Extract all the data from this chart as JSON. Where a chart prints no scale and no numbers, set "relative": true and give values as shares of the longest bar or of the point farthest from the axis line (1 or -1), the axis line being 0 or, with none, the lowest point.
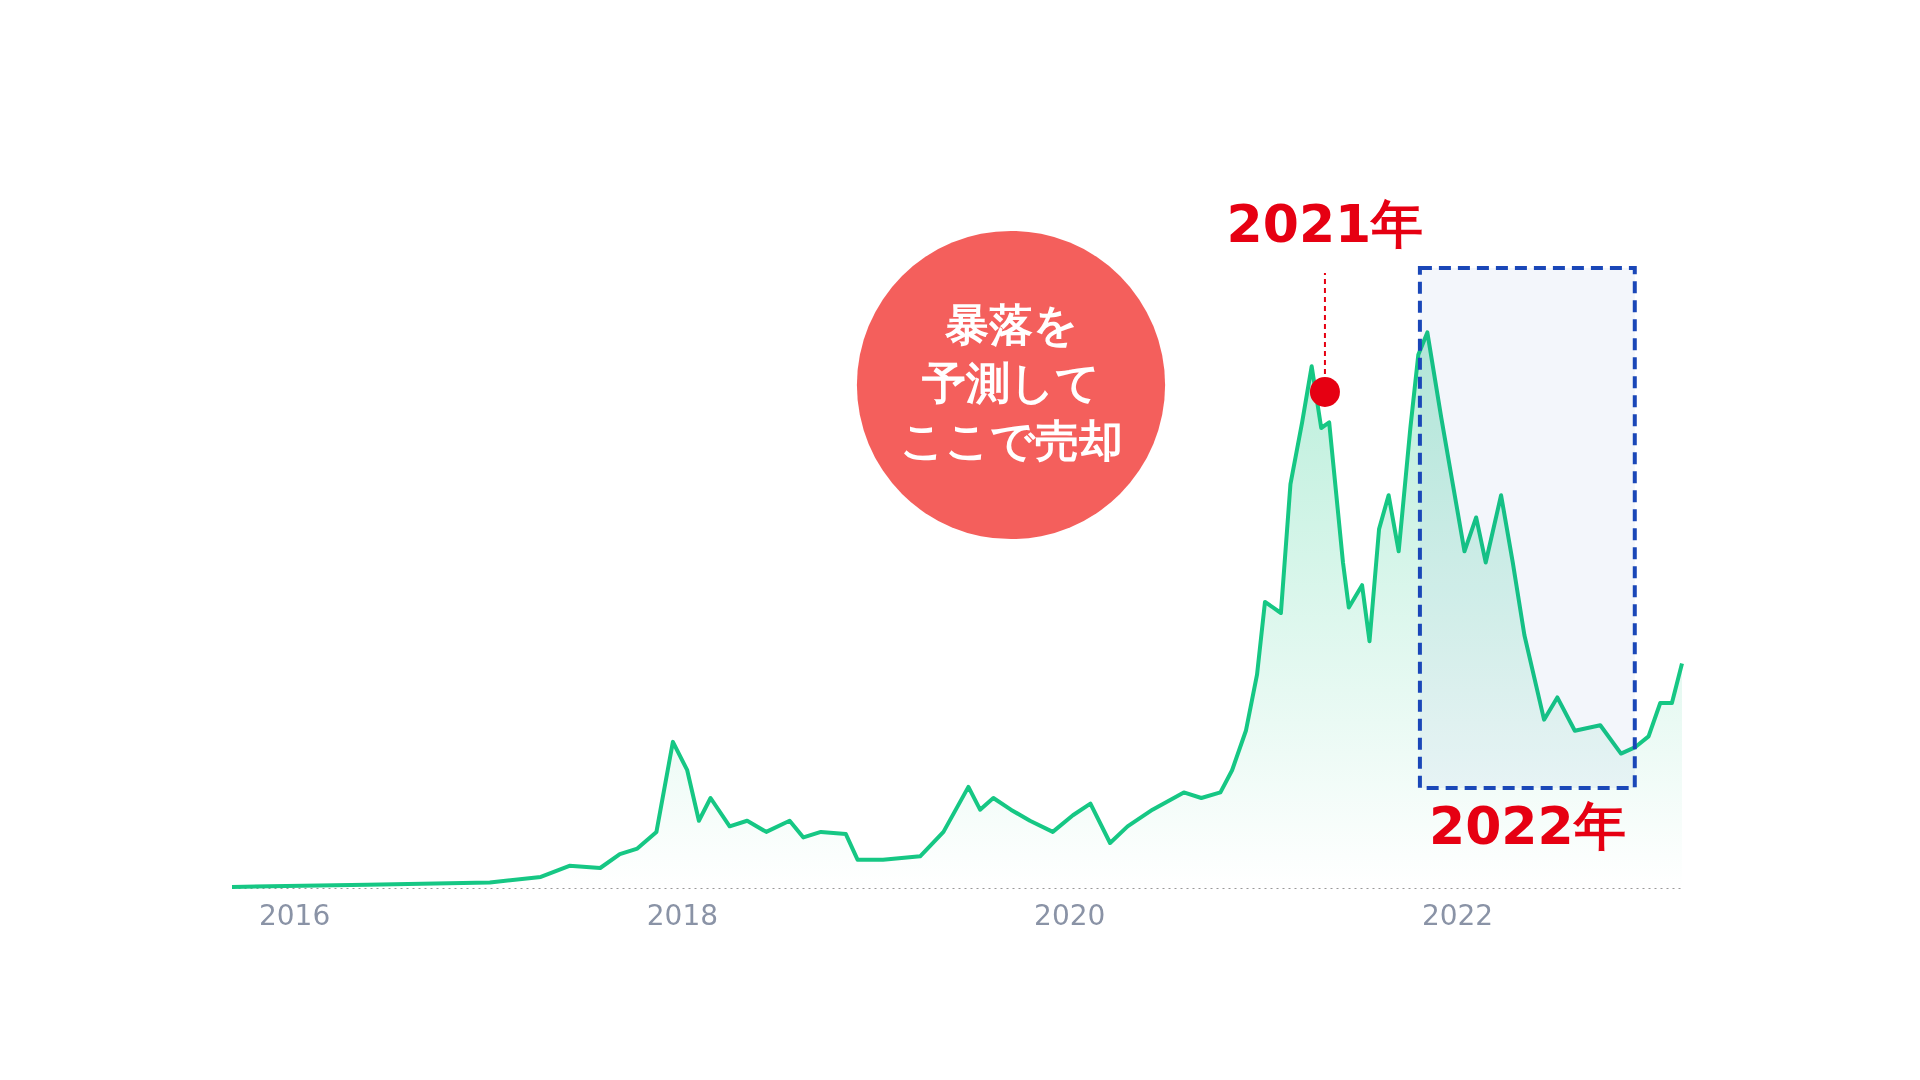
{
  "chart_data": {
    "type": "area",
    "relative": true,
    "x": [
      "2015-09-06",
      "2016-05-18",
      "2017-01-04",
      "2017-04-10",
      "2017-06-03",
      "2017-07-31",
      "2017-09-06",
      "2017-10-09",
      "2017-11-14",
      "2017-12-15",
      "2018-01-11",
      "2018-02-02",
      "2018-02-24",
      "2018-04-01",
      "2018-05-04",
      "2018-06-09",
      "2018-07-23",
      "2018-08-18",
      "2018-09-20",
      "2018-11-06",
      "2018-11-28",
      "2019-01-15",
      "2019-03-26",
      "2019-05-09",
      "2019-06-25",
      "2019-07-17",
      "2019-08-11",
      "2019-09-13",
      "2019-10-19",
      "2019-12-01",
      "2020-01-08",
      "2020-02-10",
      "2020-03-18",
      "2020-04-20",
      "2020-06-06",
      "2020-08-04",
      "2020-09-06",
      "2020-10-12",
      "2020-11-03",
      "2020-11-29",
      "2020-12-20",
      "2021-01-04",
      "2021-02-03",
      "2021-02-21",
      "2021-03-15",
      "2021-04-02",
      "2021-04-20",
      "2021-05-05",
      "2021-05-31",
      "2021-06-11",
      "2021-07-06",
      "2021-07-20",
      "2021-08-07",
      "2021-08-25",
      "2021-09-13",
      "2021-10-05",
      "2021-10-20",
      "2021-11-06",
      "2021-12-02",
      "2021-12-24",
      "2022-01-15",
      "2022-02-06",
      "2022-02-24",
      "2022-03-25",
      "2022-04-16",
      "2022-05-08",
      "2022-06-14",
      "2022-07-09",
      "2022-08-11",
      "2022-09-28",
      "2022-11-06",
      "2022-12-02",
      "2022-12-28",
      "2023-01-19",
      "2023-02-10",
      "2023-03-01"
    ],
    "series": [
      {
        "color": "#16c784",
        "values": [
          0.002,
          0.006,
          0.01,
          0.02,
          0.04,
          0.036,
          0.061,
          0.071,
          0.101,
          0.263,
          0.212,
          0.121,
          0.162,
          0.111,
          0.121,
          0.101,
          0.121,
          0.091,
          0.101,
          0.097,
          0.051,
          0.051,
          0.057,
          0.101,
          0.182,
          0.141,
          0.162,
          0.141,
          0.121,
          0.101,
          0.131,
          0.152,
          0.081,
          0.111,
          0.141,
          0.172,
          0.162,
          0.172,
          0.212,
          0.283,
          0.384,
          0.515,
          0.495,
          0.727,
          0.838,
          0.939,
          0.828,
          0.838,
          0.586,
          0.505,
          0.545,
          0.444,
          0.646,
          0.707,
          0.606,
          0.828,
          0.96,
          1.0,
          0.848,
          0.727,
          0.606,
          0.667,
          0.586,
          0.707,
          0.586,
          0.455,
          0.303,
          0.343,
          0.283,
          0.293,
          0.242,
          0.253,
          0.273,
          0.333,
          0.333,
          0.404
        ]
      }
    ],
    "xlim": [
      "2015-09-06",
      "2023-03-01"
    ],
    "xticks": [
      "2016",
      "2018",
      "2020",
      "2022"
    ],
    "annotations": [
      "暴落を",
      "予測して",
      "ここで売却",
      {
        "text": "2021年",
        "x": "2021-04-27",
        "y": 0.893
      }
    ],
    "bands": [
      {
        "axis": "x",
        "from": "2021-10-23",
        "to": "2022-12-02",
        "label": "2022年",
        "color": "#1a47b8"
      }
    ]
  }
}
